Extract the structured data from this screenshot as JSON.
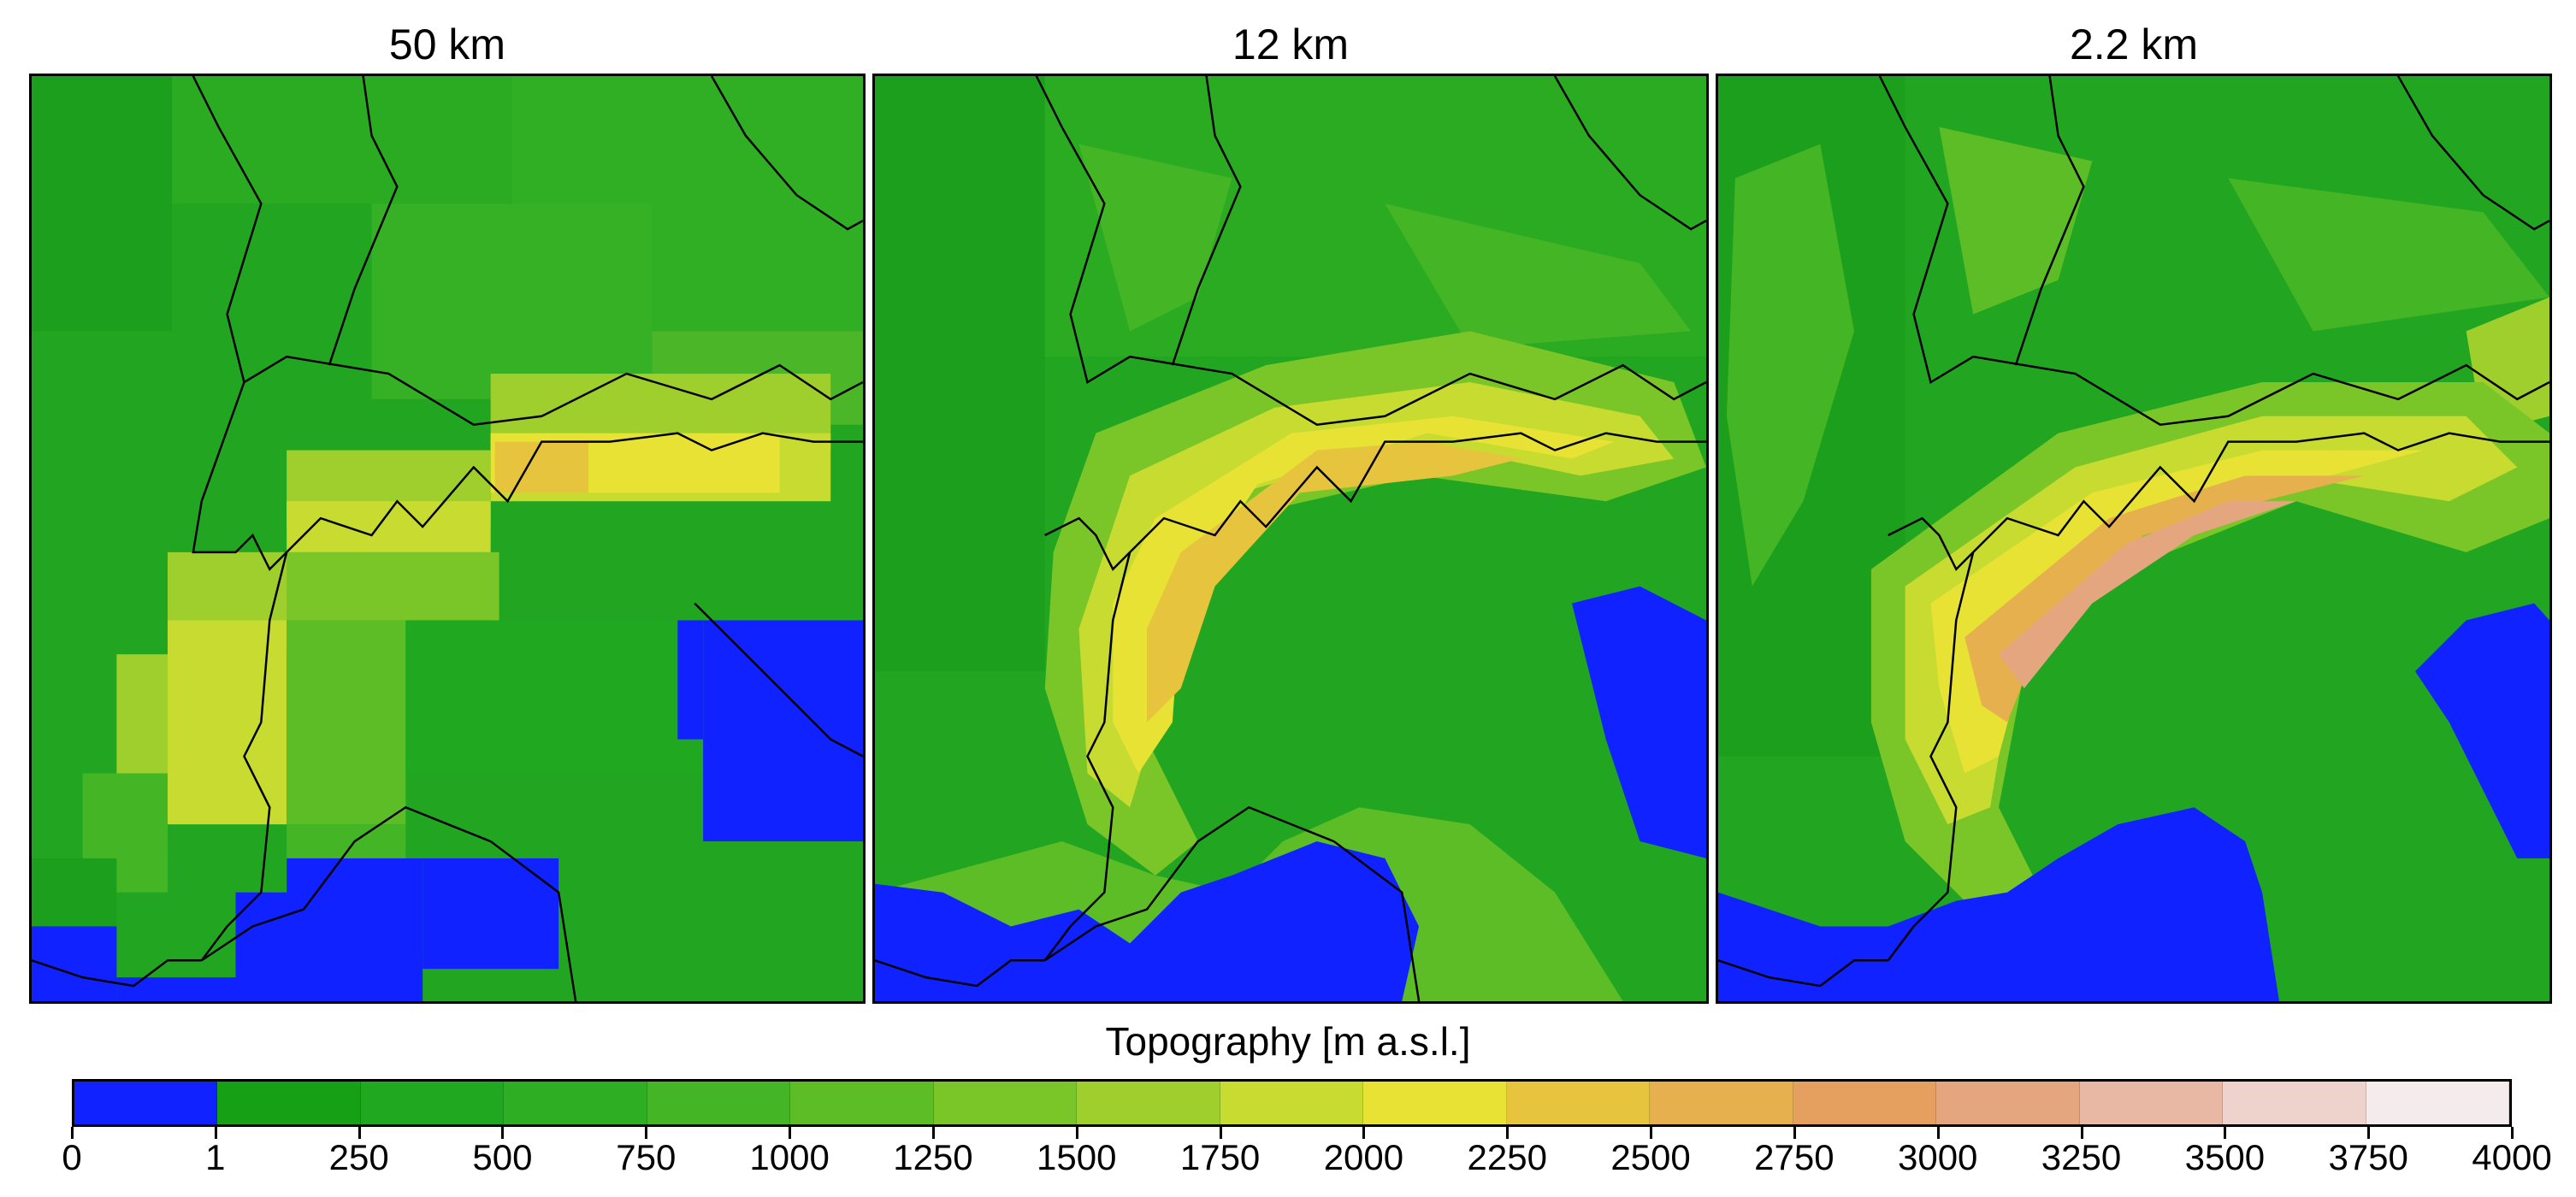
{
  "panels": [
    {
      "title": "50 km"
    },
    {
      "title": "12 km"
    },
    {
      "title": "2.2 km"
    }
  ],
  "colorbar": {
    "title": "Topography [m a.s.l.]",
    "ticks": [
      "0",
      "1",
      "250",
      "500",
      "750",
      "1000",
      "1250",
      "1500",
      "1750",
      "2000",
      "2250",
      "2500",
      "2750",
      "3000",
      "3250",
      "3500",
      "3750",
      "4000"
    ],
    "colors": [
      "#1022ff",
      "#15a015",
      "#20a820",
      "#2eae22",
      "#44b525",
      "#5cbd27",
      "#7ac629",
      "#9ecf2c",
      "#c8db30",
      "#e8e234",
      "#e6c43e",
      "#e6b04e",
      "#e5a060",
      "#e4a67e",
      "#e8b8a4",
      "#eed2cc",
      "#f4ecec"
    ]
  },
  "legend_colors": {
    "sea": "#1022ff",
    "lowland": "#1fa51f",
    "hills": "#4ab628",
    "mountain": "#9ecf2c",
    "high": "#e8e234",
    "peak": "#e4a67e"
  }
}
